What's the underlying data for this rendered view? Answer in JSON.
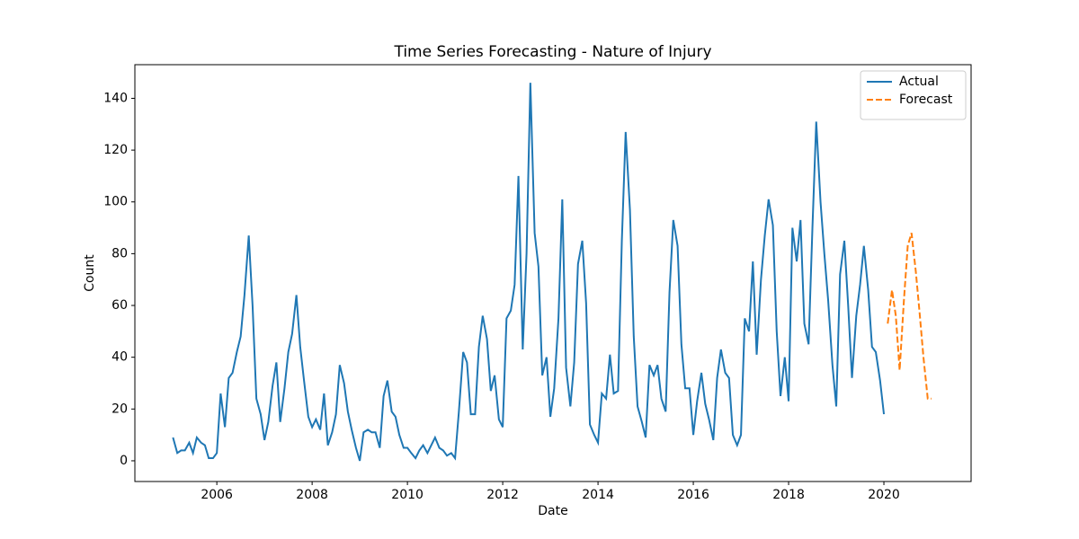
{
  "chart_data": {
    "type": "line",
    "title": "Time Series Forecasting - Nature of Injury",
    "x_label": "Date",
    "y_label": "Count",
    "xlim": [
      2004.28,
      2021.83
    ],
    "xticks": [
      2006,
      2008,
      2010,
      2012,
      2014,
      2016,
      2018,
      2020
    ],
    "ylim": [
      -8,
      153
    ],
    "yticks": [
      0,
      20,
      40,
      60,
      80,
      100,
      120,
      140
    ],
    "grid": false,
    "legend": "upper right",
    "series": [
      {
        "name": "Actual",
        "color": "#1f77b4",
        "style": "solid",
        "x": [
          2005.08,
          2005.17,
          2005.25,
          2005.33,
          2005.42,
          2005.5,
          2005.58,
          2005.67,
          2005.75,
          2005.83,
          2005.92,
          2006,
          2006.08,
          2006.17,
          2006.25,
          2006.33,
          2006.42,
          2006.5,
          2006.58,
          2006.67,
          2006.75,
          2006.83,
          2006.92,
          2007,
          2007.08,
          2007.17,
          2007.25,
          2007.33,
          2007.42,
          2007.5,
          2007.58,
          2007.67,
          2007.75,
          2007.83,
          2007.92,
          2008,
          2008.08,
          2008.17,
          2008.25,
          2008.33,
          2008.42,
          2008.5,
          2008.58,
          2008.67,
          2008.75,
          2008.83,
          2008.92,
          2009,
          2009.08,
          2009.17,
          2009.25,
          2009.33,
          2009.42,
          2009.5,
          2009.58,
          2009.67,
          2009.75,
          2009.83,
          2009.92,
          2010,
          2010.08,
          2010.17,
          2010.25,
          2010.33,
          2010.42,
          2010.5,
          2010.58,
          2010.67,
          2010.75,
          2010.83,
          2010.92,
          2011,
          2011.08,
          2011.17,
          2011.25,
          2011.33,
          2011.42,
          2011.5,
          2011.58,
          2011.67,
          2011.75,
          2011.83,
          2011.92,
          2012,
          2012.08,
          2012.17,
          2012.25,
          2012.33,
          2012.42,
          2012.5,
          2012.58,
          2012.67,
          2012.75,
          2012.83,
          2012.92,
          2013,
          2013.08,
          2013.17,
          2013.25,
          2013.33,
          2013.42,
          2013.5,
          2013.58,
          2013.67,
          2013.75,
          2013.83,
          2013.92,
          2014,
          2014.08,
          2014.17,
          2014.25,
          2014.33,
          2014.42,
          2014.5,
          2014.58,
          2014.67,
          2014.75,
          2014.83,
          2014.92,
          2015,
          2015.08,
          2015.17,
          2015.25,
          2015.33,
          2015.42,
          2015.5,
          2015.58,
          2015.67,
          2015.75,
          2015.83,
          2015.92,
          2016,
          2016.08,
          2016.17,
          2016.25,
          2016.33,
          2016.42,
          2016.5,
          2016.58,
          2016.67,
          2016.75,
          2016.83,
          2016.92,
          2017,
          2017.08,
          2017.17,
          2017.25,
          2017.33,
          2017.42,
          2017.5,
          2017.58,
          2017.67,
          2017.75,
          2017.83,
          2017.92,
          2018,
          2018.08,
          2018.17,
          2018.25,
          2018.33,
          2018.42,
          2018.5,
          2018.58,
          2018.67,
          2018.75,
          2018.83,
          2018.92,
          2019,
          2019.08,
          2019.17,
          2019.25,
          2019.33,
          2019.42,
          2019.5,
          2019.58,
          2019.67,
          2019.75,
          2019.83,
          2019.92,
          2020
        ],
        "values": [
          9,
          3,
          4,
          4,
          7,
          3,
          9,
          7,
          6,
          1,
          1,
          3,
          26,
          13,
          32,
          34,
          42,
          48,
          64,
          87,
          60,
          24,
          18,
          8,
          15,
          29,
          38,
          15,
          28,
          42,
          49,
          64,
          44,
          31,
          17,
          13,
          16,
          12,
          26,
          6,
          11,
          18,
          37,
          30,
          19,
          12,
          5,
          0,
          11,
          12,
          11,
          11,
          5,
          25,
          31,
          19,
          17,
          10,
          5,
          5,
          3,
          1,
          4,
          6,
          3,
          6,
          9,
          5,
          4,
          2,
          3,
          1,
          19,
          42,
          38,
          18,
          18,
          44,
          56,
          47,
          27,
          33,
          16,
          13,
          55,
          58,
          68,
          110,
          43,
          80,
          146,
          88,
          75,
          33,
          40,
          17,
          28,
          55,
          101,
          36,
          21,
          38,
          76,
          85,
          61,
          14,
          10,
          7,
          26,
          24,
          41,
          26,
          27,
          85,
          127,
          97,
          48,
          21,
          15,
          9,
          37,
          33,
          37,
          24,
          19,
          65,
          93,
          83,
          45,
          28,
          28,
          10,
          23,
          34,
          22,
          16,
          8,
          32,
          43,
          34,
          32,
          10,
          6,
          10,
          55,
          50,
          77,
          41,
          70,
          87,
          101,
          91,
          50,
          25,
          40,
          23,
          90,
          77,
          93,
          53,
          45,
          90,
          131,
          100,
          80,
          62,
          37,
          21,
          72,
          85,
          60,
          32,
          56,
          68,
          83,
          66,
          44,
          42,
          31,
          18
        ]
      },
      {
        "name": "Forecast",
        "color": "#ff7f0e",
        "style": "dashed",
        "x": [
          2020.08,
          2020.17,
          2020.25,
          2020.33,
          2020.42,
          2020.5,
          2020.58,
          2020.67,
          2020.75,
          2020.83,
          2020.92,
          2021
        ],
        "values": [
          53,
          66,
          56,
          35,
          62,
          83,
          88,
          73,
          57,
          40,
          24,
          24
        ]
      }
    ]
  }
}
